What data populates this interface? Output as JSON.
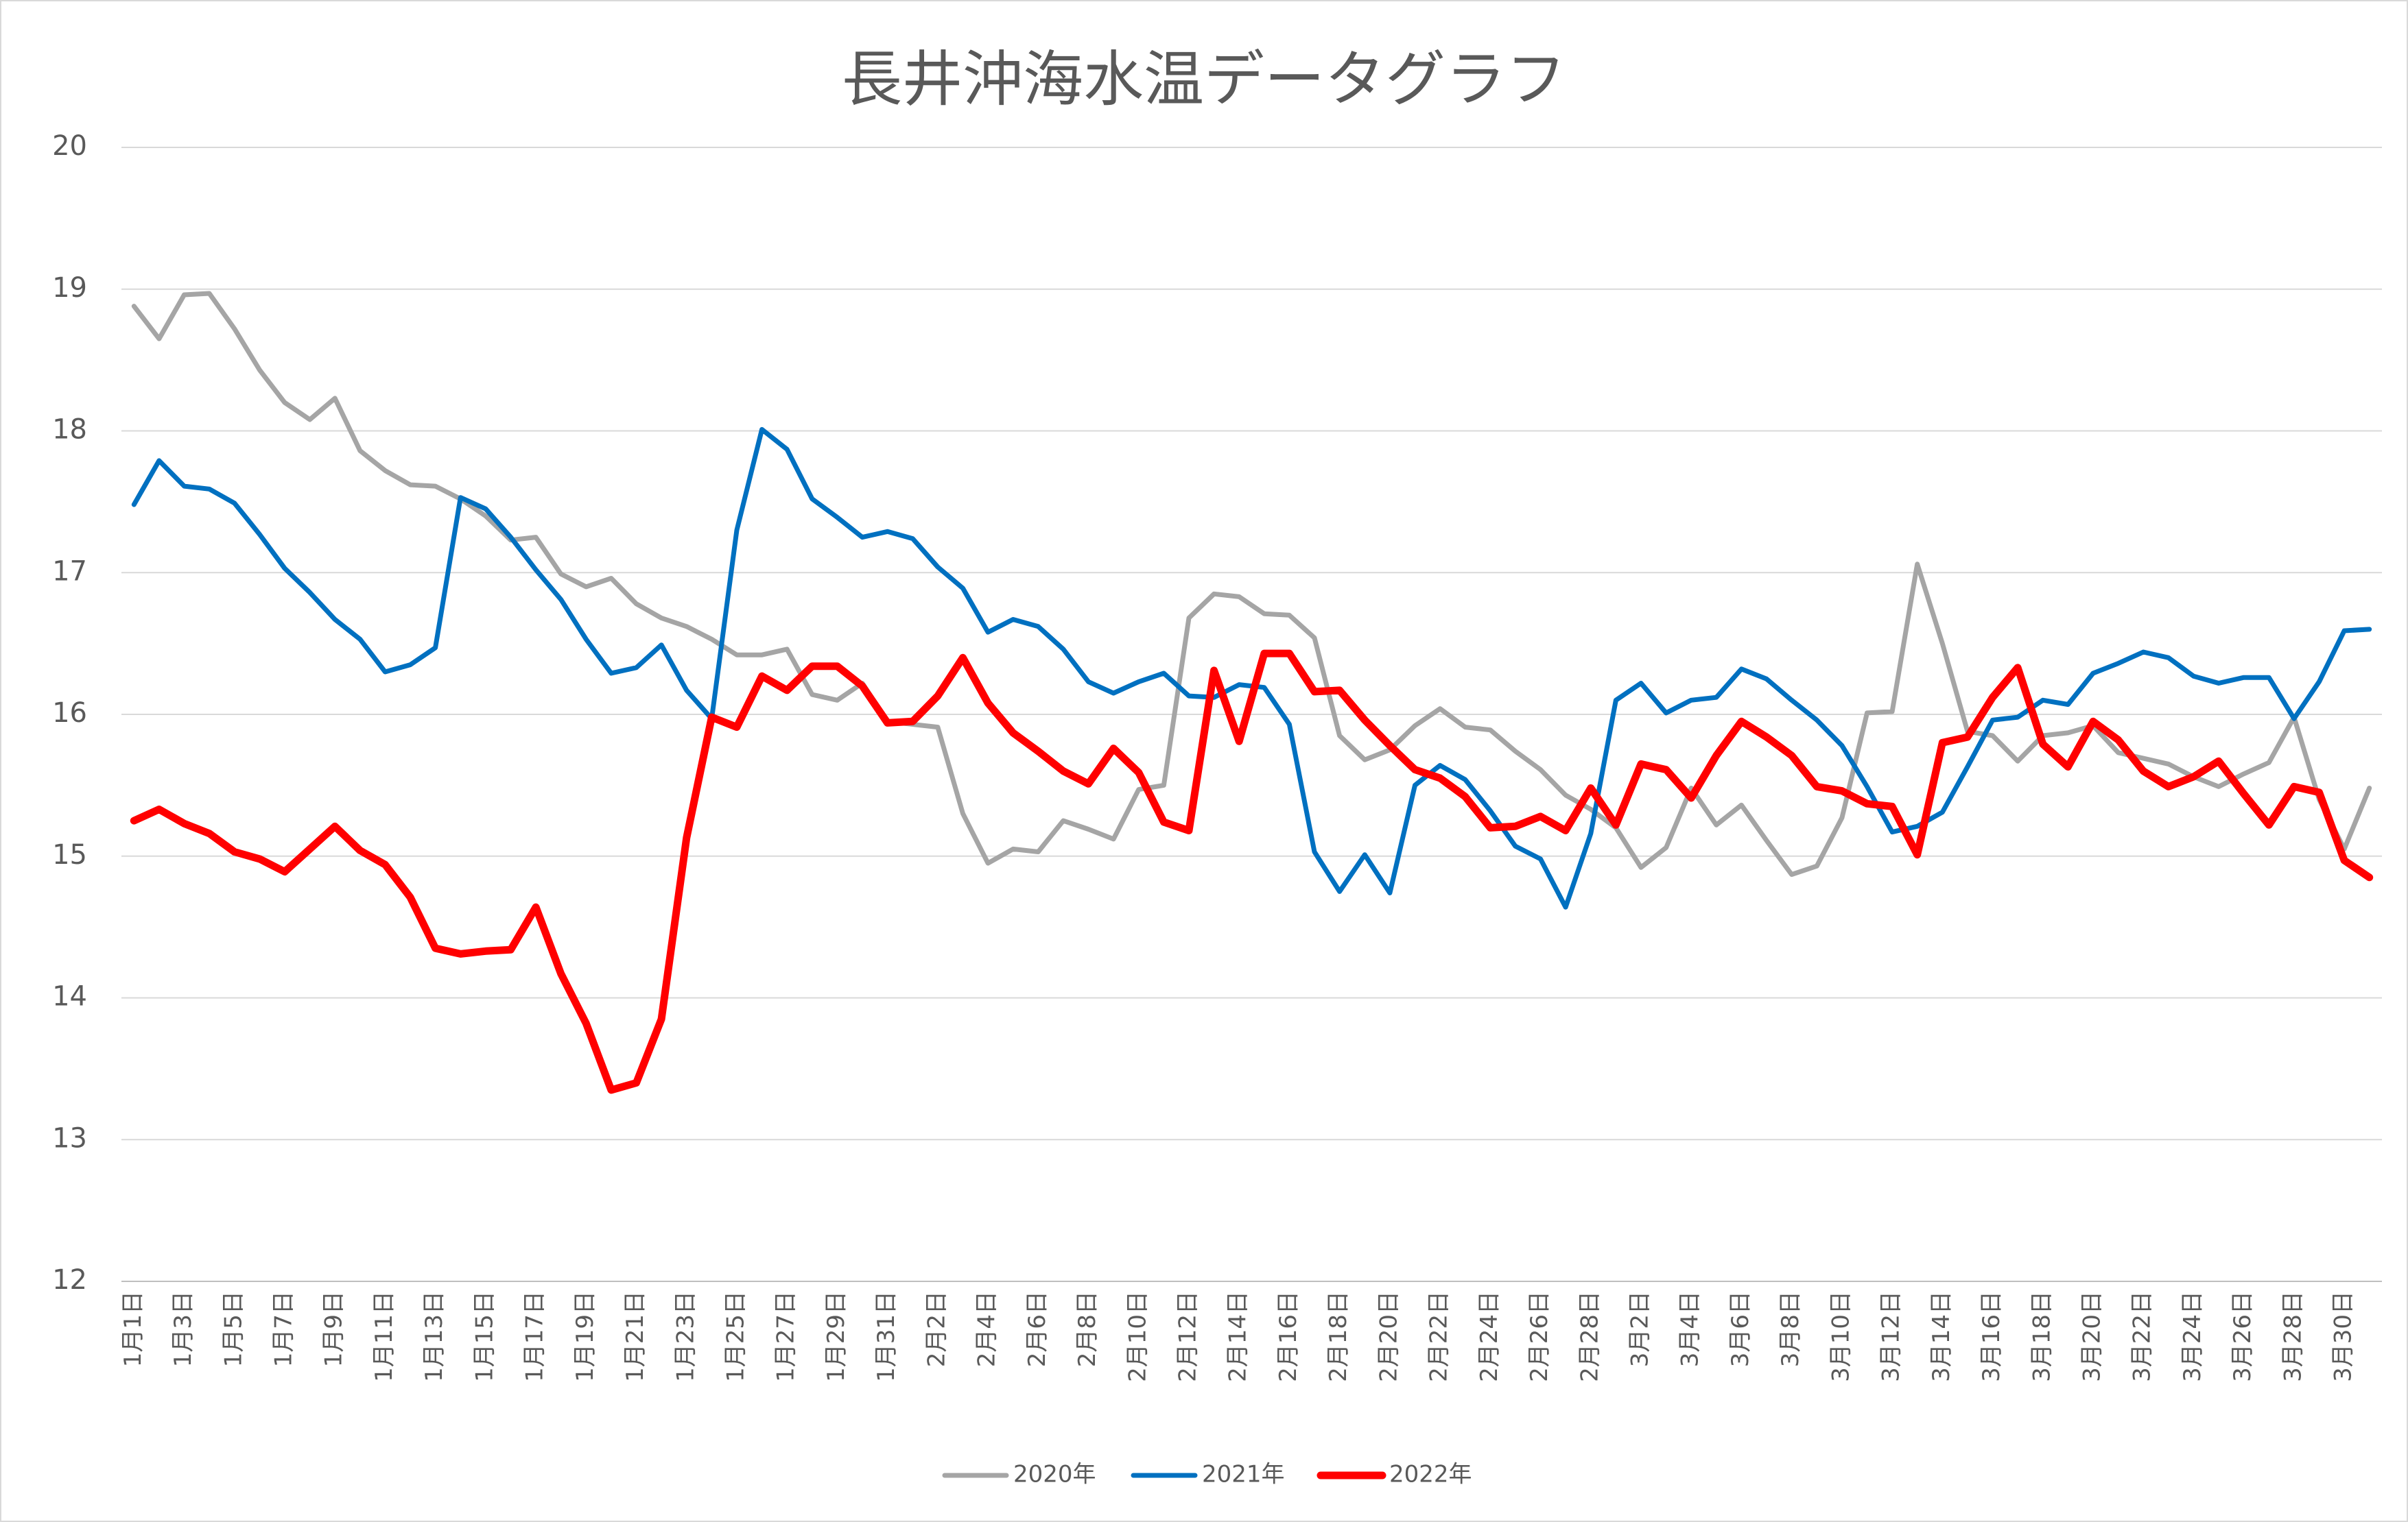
{
  "chart_data": {
    "type": "line",
    "title": "長井沖海水温データグラフ",
    "categories": [
      "1月1日",
      null,
      "1月3日",
      null,
      "1月5日",
      null,
      "1月7日",
      null,
      "1月9日",
      null,
      "1月11日",
      null,
      "1月13日",
      null,
      "1月15日",
      null,
      "1月17日",
      null,
      "1月19日",
      null,
      "1月21日",
      null,
      "1月23日",
      null,
      "1月25日",
      null,
      "1月27日",
      null,
      "1月29日",
      null,
      "1月31日",
      null,
      "2月2日",
      null,
      "2月4日",
      null,
      "2月6日",
      null,
      "2月8日",
      null,
      "2月10日",
      null,
      "2月12日",
      null,
      "2月14日",
      null,
      "2月16日",
      null,
      "2月18日",
      null,
      "2月20日",
      null,
      "2月22日",
      null,
      "2月24日",
      null,
      "2月26日",
      null,
      "2月28日",
      null,
      "3月2日",
      null,
      "3月4日",
      null,
      "3月6日",
      null,
      "3月8日",
      null,
      "3月10日",
      null,
      "3月12日",
      null,
      "3月14日",
      null,
      "3月16日",
      null,
      "3月18日",
      null,
      "3月20日",
      null,
      "3月22日",
      null,
      "3月24日",
      null,
      "3月26日",
      null,
      "3月28日",
      null,
      "3月30日",
      null
    ],
    "series": [
      {
        "name": "2020年",
        "color": "#a5a5a5",
        "values": [
          18.88,
          18.65,
          18.96,
          18.97,
          18.72,
          18.43,
          18.2,
          18.08,
          18.23,
          17.86,
          17.72,
          17.62,
          17.61,
          17.52,
          17.4,
          17.23,
          17.25,
          16.99,
          16.9,
          16.96,
          16.78,
          16.68,
          16.62,
          16.53,
          16.42,
          16.42,
          16.46,
          16.14,
          16.1,
          16.22,
          15.95,
          15.93,
          15.91,
          15.3,
          14.95,
          15.05,
          15.03,
          15.25,
          15.19,
          15.12,
          15.47,
          15.5,
          16.68,
          16.85,
          16.83,
          16.71,
          16.7,
          16.54,
          15.85,
          15.68,
          15.75,
          15.92,
          16.04,
          15.91,
          15.89,
          15.74,
          15.61,
          15.43,
          15.33,
          15.2,
          14.92,
          15.06,
          15.48,
          15.22,
          15.36,
          15.11,
          14.87,
          14.93,
          15.27,
          16.01,
          16.02,
          17.06,
          16.5,
          15.88,
          15.85,
          15.67,
          15.85,
          15.87,
          15.92,
          15.73,
          15.69,
          15.65,
          15.56,
          15.49,
          15.58,
          15.66,
          15.98,
          15.4,
          15.05,
          15.48
        ]
      },
      {
        "name": "2021年",
        "color": "#0070c0",
        "values": [
          17.48,
          17.79,
          17.61,
          17.59,
          17.49,
          17.27,
          17.03,
          16.86,
          16.67,
          16.53,
          16.3,
          16.35,
          16.47,
          17.53,
          17.45,
          17.25,
          17.02,
          16.81,
          16.53,
          16.29,
          16.33,
          16.49,
          16.17,
          15.97,
          17.3,
          18.01,
          17.87,
          17.52,
          17.39,
          17.25,
          17.29,
          17.24,
          17.04,
          16.89,
          16.58,
          16.67,
          16.62,
          16.46,
          16.23,
          16.15,
          16.23,
          16.29,
          16.13,
          16.12,
          16.21,
          16.19,
          15.93,
          15.03,
          14.75,
          15.01,
          14.74,
          15.5,
          15.64,
          15.54,
          15.32,
          15.07,
          14.98,
          14.64,
          15.16,
          16.1,
          16.22,
          16.01,
          16.1,
          16.12,
          16.32,
          16.25,
          16.1,
          15.96,
          15.78,
          15.49,
          15.17,
          15.21,
          15.31,
          15.63,
          15.96,
          15.98,
          16.1,
          16.07,
          16.29,
          16.36,
          16.44,
          16.4,
          16.27,
          16.22,
          16.26,
          16.26,
          15.97,
          16.23,
          16.59,
          16.6
        ]
      },
      {
        "name": "2022年",
        "color": "#ff0000",
        "values": [
          15.25,
          15.33,
          15.23,
          15.16,
          15.03,
          14.98,
          14.89,
          15.05,
          15.21,
          15.04,
          14.94,
          14.71,
          14.35,
          14.31,
          14.33,
          14.34,
          14.64,
          14.17,
          13.82,
          13.35,
          13.4,
          13.85,
          15.13,
          15.98,
          15.91,
          16.27,
          16.17,
          16.34,
          16.34,
          16.2,
          15.94,
          15.95,
          16.13,
          16.4,
          16.08,
          15.87,
          15.74,
          15.6,
          15.51,
          15.76,
          15.59,
          15.24,
          15.18,
          16.31,
          15.81,
          16.43,
          16.43,
          16.16,
          16.17,
          15.96,
          15.78,
          15.61,
          15.55,
          15.42,
          15.2,
          15.21,
          15.28,
          15.18,
          15.48,
          15.22,
          15.65,
          15.61,
          15.41,
          15.71,
          15.95,
          15.84,
          15.71,
          15.49,
          15.46,
          15.37,
          15.35,
          15.01,
          15.8,
          15.84,
          16.12,
          16.33,
          15.79,
          15.63,
          15.95,
          15.82,
          15.6,
          15.49,
          15.56,
          15.67,
          15.44,
          15.22,
          15.49,
          15.45,
          14.97,
          14.85
        ]
      }
    ],
    "ylim": [
      12,
      20
    ],
    "yticks": [
      12,
      13,
      14,
      15,
      16,
      17,
      18,
      19,
      20
    ],
    "grid": true,
    "legend": "bottom"
  }
}
